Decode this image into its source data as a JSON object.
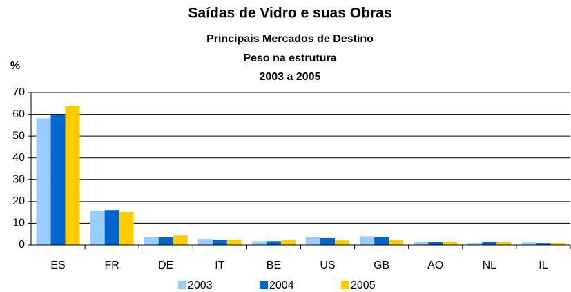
{
  "chart_data": {
    "type": "bar",
    "title": "Saídas de Vidro e suas Obras",
    "subtitle": [
      "Principais Mercados de Destino",
      "Peso na estrutura",
      "2003 a 2005"
    ],
    "y_label": "%",
    "categories": [
      "ES",
      "FR",
      "DE",
      "IT",
      "BE",
      "US",
      "GB",
      "AO",
      "NL",
      "IL"
    ],
    "series": [
      {
        "name": "2003",
        "color": "#99ccff",
        "values": [
          58.2,
          15.8,
          3.5,
          2.8,
          1.8,
          3.7,
          4.0,
          1.3,
          1.0,
          1.2
        ]
      },
      {
        "name": "2004",
        "color": "#0066cc",
        "values": [
          59.8,
          16.1,
          3.5,
          2.5,
          1.8,
          3.2,
          3.5,
          1.3,
          1.3,
          0.9
        ]
      },
      {
        "name": "2005",
        "color": "#ffcc00",
        "values": [
          63.9,
          15.2,
          4.4,
          2.5,
          2.2,
          2.2,
          2.3,
          1.5,
          1.3,
          1.0
        ]
      }
    ],
    "ylim": [
      0,
      70
    ],
    "yticks": [
      0,
      10,
      20,
      30,
      40,
      50,
      60,
      70
    ],
    "grid": true,
    "legend": "bottom"
  }
}
